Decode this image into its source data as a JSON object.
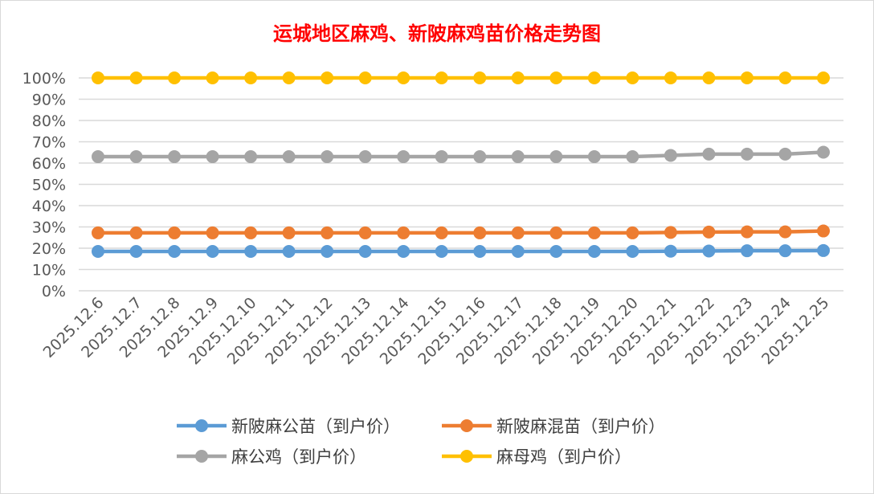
{
  "chart_data": {
    "type": "line",
    "title": "运城地区麻鸡、新陂麻鸡苗价格走势图",
    "xlabel": "",
    "ylabel": "",
    "ylim": [
      0,
      100
    ],
    "yticks": [
      "0%",
      "10%",
      "20%",
      "30%",
      "40%",
      "50%",
      "60%",
      "70%",
      "80%",
      "90%",
      "100%"
    ],
    "grid": true,
    "legend_position": "bottom",
    "categories": [
      "2025.12.6",
      "2025.12.7",
      "2025.12.8",
      "2025.12.9",
      "2025.12.10",
      "2025.12.11",
      "2025.12.12",
      "2025.12.13",
      "2025.12.14",
      "2025.12.15",
      "2025.12.16",
      "2025.12.17",
      "2025.12.18",
      "2025.12.19",
      "2025.12.20",
      "2025.12.21",
      "2025.12.22",
      "2025.12.23",
      "2025.12.24",
      "2025.12.25"
    ],
    "series": [
      {
        "name": "新陂麻公苗（到户价）",
        "color": "#5b9bd5",
        "values": [
          18.5,
          18.5,
          18.5,
          18.5,
          18.5,
          18.5,
          18.5,
          18.5,
          18.5,
          18.5,
          18.5,
          18.5,
          18.5,
          18.5,
          18.5,
          18.6,
          18.7,
          18.8,
          18.8,
          18.9
        ]
      },
      {
        "name": "新陂麻混苗（到户价）",
        "color": "#ed7d31",
        "values": [
          27.2,
          27.2,
          27.2,
          27.2,
          27.2,
          27.2,
          27.2,
          27.2,
          27.2,
          27.2,
          27.2,
          27.2,
          27.2,
          27.2,
          27.2,
          27.4,
          27.6,
          27.7,
          27.7,
          28.1
        ]
      },
      {
        "name": "麻公鸡（到户价）",
        "color": "#a5a5a5",
        "values": [
          63.0,
          63.0,
          63.0,
          63.0,
          63.0,
          63.0,
          63.0,
          63.0,
          63.0,
          63.0,
          63.0,
          63.0,
          63.0,
          63.0,
          63.0,
          63.6,
          64.2,
          64.2,
          64.2,
          65.1
        ]
      },
      {
        "name": "麻母鸡（到户价）",
        "color": "#ffc000",
        "values": [
          100,
          100,
          100,
          100,
          100,
          100,
          100,
          100,
          100,
          100,
          100,
          100,
          100,
          100,
          100,
          100,
          100,
          100,
          100,
          100
        ]
      }
    ]
  }
}
